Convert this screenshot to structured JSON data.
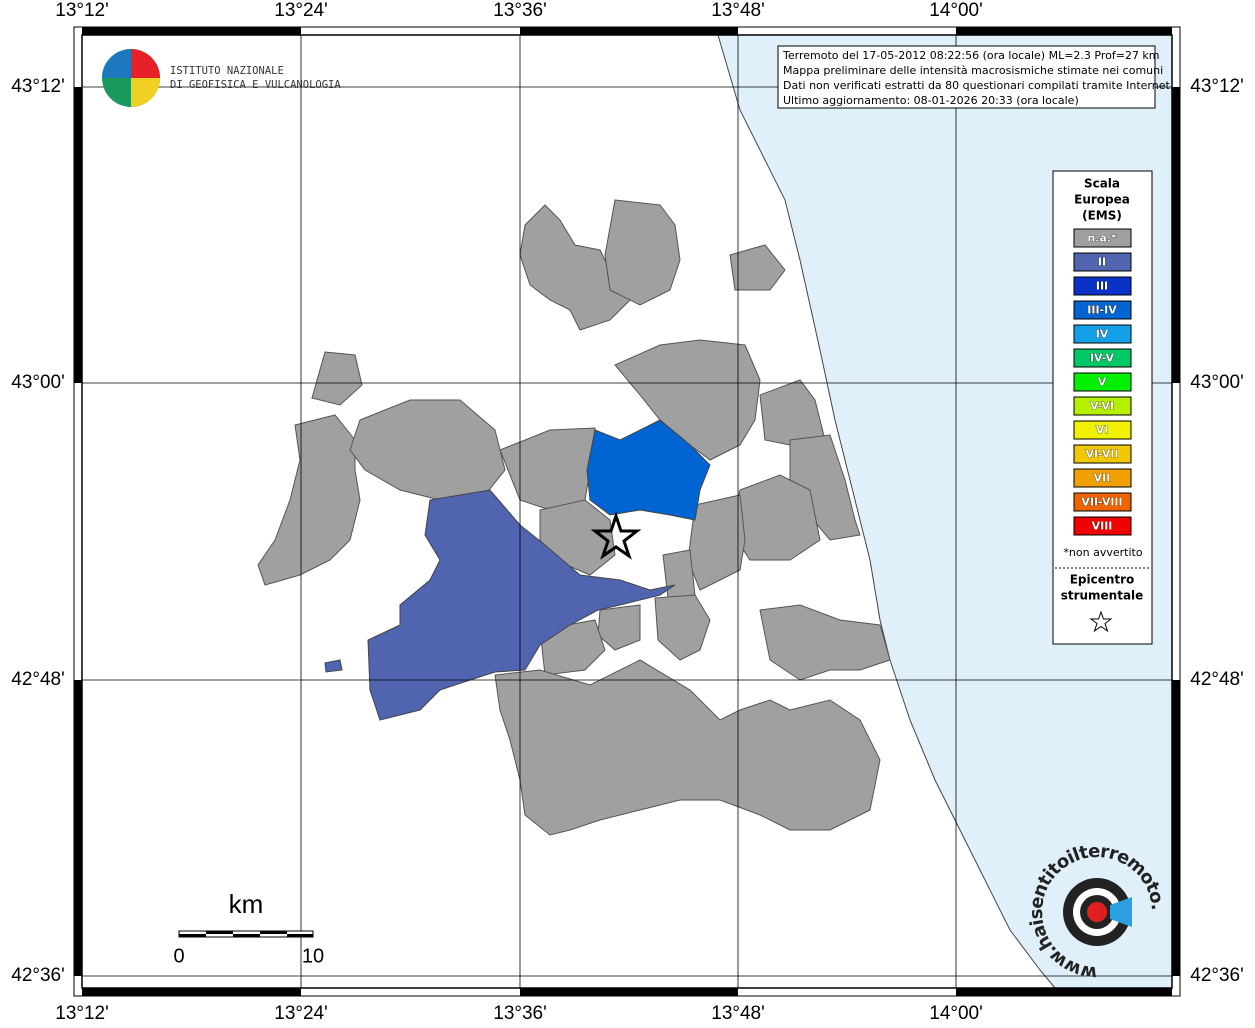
{
  "map": {
    "lon_labels": [
      "13°12'",
      "13°24'",
      "13°36'",
      "13°48'",
      "14°00'"
    ],
    "lat_labels": [
      "43°12'",
      "43°00'",
      "42°48'",
      "42°36'"
    ],
    "info": [
      "Terremoto del 17-05-2012 08:22:56 (ora locale) ML=2.3 Prof=27 km",
      "Mappa preliminare delle intensità macrosismiche stimate nei comuni",
      "Dati non verificati estratti da 80 questionari compilati tramite Internet.",
      "Ultimo aggiornamento: 08-01-2026 20:33 (ora locale)"
    ],
    "legend": {
      "title": [
        "Scala",
        "Europea",
        "(EMS)"
      ],
      "items": [
        {
          "label": "n.a.*",
          "color": "#a0a0a0"
        },
        {
          "label": "II",
          "color": "#5064b0"
        },
        {
          "label": "III",
          "color": "#0a32c8"
        },
        {
          "label": "III-IV",
          "color": "#0064d2"
        },
        {
          "label": "IV",
          "color": "#14a0e6"
        },
        {
          "label": "IV-V",
          "color": "#00c864"
        },
        {
          "label": "V",
          "color": "#00f000"
        },
        {
          "label": "V-VI",
          "color": "#b4f000"
        },
        {
          "label": "VI",
          "color": "#f0f000"
        },
        {
          "label": "VI-VII",
          "color": "#f0c800"
        },
        {
          "label": "VII",
          "color": "#f0a000"
        },
        {
          "label": "VII-VIII",
          "color": "#f06400"
        },
        {
          "label": "VIII",
          "color": "#f00000"
        }
      ],
      "note": "*non avvertito",
      "epicenter": [
        "Epicentro",
        "strumentale"
      ]
    },
    "scale": {
      "unit": "km",
      "labels": [
        "0",
        "10"
      ]
    },
    "logo_text": [
      "ISTITUTO NAZIONALE",
      "DI GEOFISICA E VULCANOLOGIA"
    ],
    "site_text": "www.haisentitoilterremoto.it"
  }
}
